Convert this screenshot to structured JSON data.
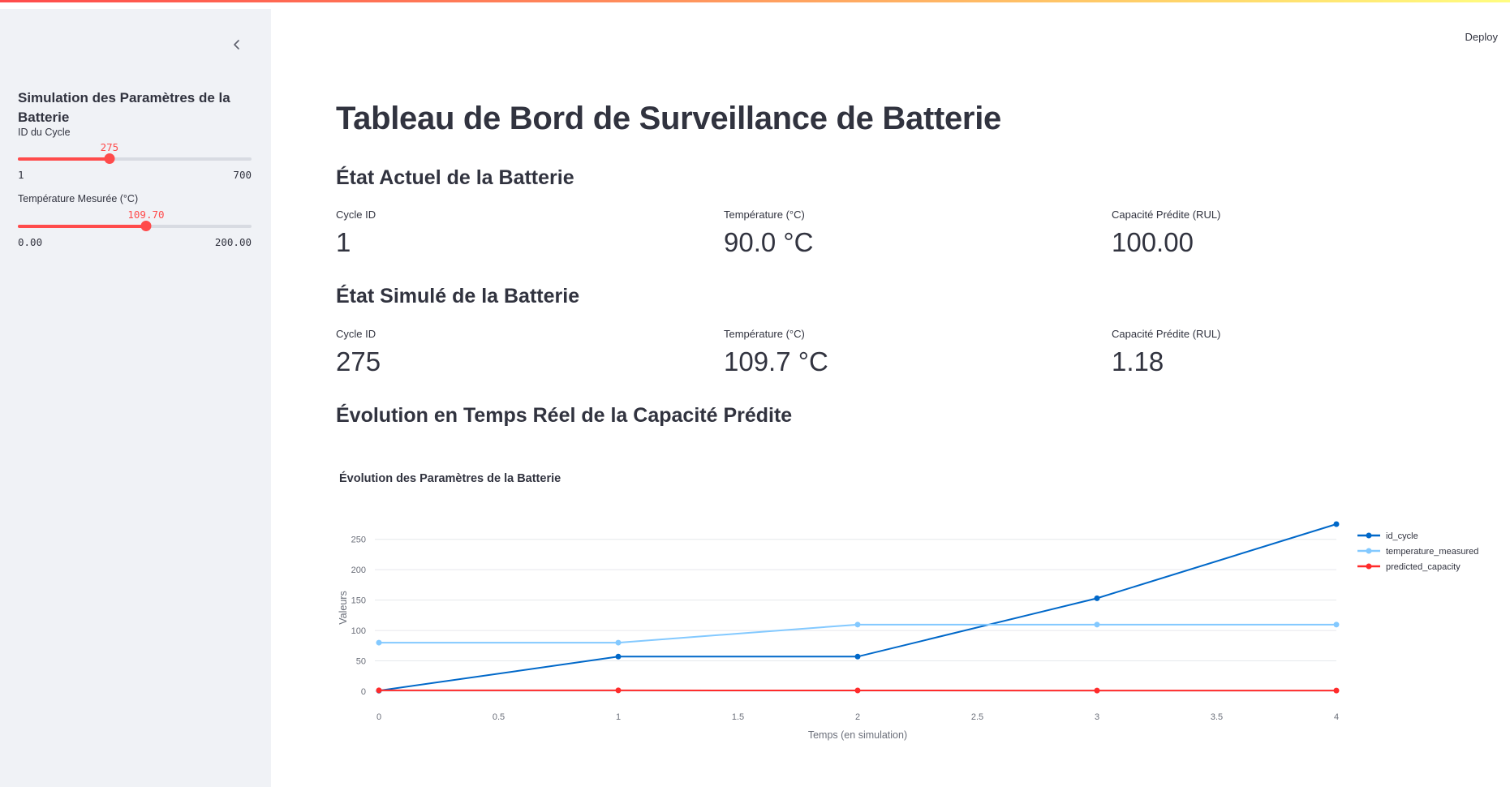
{
  "sidebar": {
    "title": "Simulation des Paramètres de la Batterie",
    "cycle_slider": {
      "label": "ID du Cycle",
      "value": "275",
      "min": "1",
      "max": "700",
      "fraction": 0.392
    },
    "temp_slider": {
      "label": "Température Mesurée (°C)",
      "value": "109.70",
      "min": "0.00",
      "max": "200.00",
      "fraction": 0.5485
    }
  },
  "header": {
    "deploy_label": "Deploy"
  },
  "main": {
    "title": "Tableau de Bord de Surveillance de Batterie",
    "current": {
      "heading": "État Actuel de la Batterie",
      "metrics": [
        {
          "label": "Cycle ID",
          "value": "1"
        },
        {
          "label": "Température (°C)",
          "value": "90.0 °C"
        },
        {
          "label": "Capacité Prédite (RUL)",
          "value": "100.00"
        }
      ]
    },
    "simulated": {
      "heading": "État Simulé de la Batterie",
      "metrics": [
        {
          "label": "Cycle ID",
          "value": "275"
        },
        {
          "label": "Température (°C)",
          "value": "109.7 °C"
        },
        {
          "label": "Capacité Prédite (RUL)",
          "value": "1.18"
        }
      ]
    },
    "evolution_heading": "Évolution en Temps Réel de la Capacité Prédite"
  },
  "colors": {
    "accent": "#ff4b4b",
    "series_id_cycle": "#0068c9",
    "series_temperature": "#83c9ff",
    "series_capacity": "#ff2b2b"
  },
  "chart_data": {
    "type": "line",
    "title": "Évolution des Paramètres de la Batterie",
    "xlabel": "Temps (en simulation)",
    "ylabel": "Valeurs",
    "x": [
      0,
      1,
      2,
      3,
      4
    ],
    "xticks": [
      "0",
      "0.5",
      "1",
      "1.5",
      "2",
      "2.5",
      "3",
      "3.5",
      "4"
    ],
    "yticks": [
      "0",
      "50",
      "100",
      "150",
      "200",
      "250"
    ],
    "xlim": [
      0,
      4
    ],
    "ylim": [
      0,
      275
    ],
    "grid": true,
    "legend": "top-right",
    "series": [
      {
        "name": "id_cycle",
        "values": [
          1,
          57,
          57,
          153,
          275
        ]
      },
      {
        "name": "temperature_measured",
        "values": [
          80,
          80,
          109.7,
          109.7,
          109.7
        ]
      },
      {
        "name": "predicted_capacity",
        "values": [
          1.5,
          1.5,
          1.3,
          1.2,
          1.18
        ]
      }
    ]
  }
}
